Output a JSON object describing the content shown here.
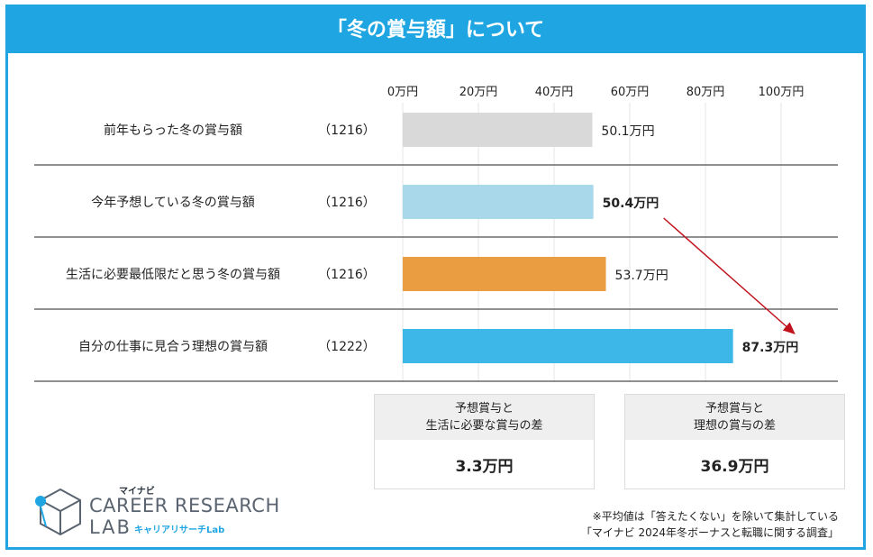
{
  "title": "「冬の賞与額」について",
  "chart_data": {
    "type": "bar",
    "orientation": "horizontal",
    "unit_suffix": "万円",
    "xlim": [
      0,
      100
    ],
    "ticks": [
      0,
      20,
      40,
      60,
      80,
      100
    ],
    "tick_labels": [
      "0万円",
      "20万円",
      "40万円",
      "60万円",
      "80万円",
      "100万円"
    ],
    "categories": [
      "前年もらった冬の賞与額",
      "今年予想している冬の賞与額",
      "生活に必要最低限だと思う冬の賞与額",
      "自分の仕事に見合う理想の賞与額"
    ],
    "counts": [
      "（1216）",
      "（1216）",
      "（1216）",
      "（1222）"
    ],
    "values": [
      50.1,
      50.4,
      53.7,
      87.3
    ],
    "value_labels": [
      "50.1万円",
      "50.4万円",
      "53.7万円",
      "87.3万円"
    ],
    "bold_labels": [
      false,
      true,
      false,
      true
    ],
    "colors": [
      "#d9d9d9",
      "#a8d8ea",
      "#eb9d41",
      "#3db6e8"
    ],
    "arrow_color": "#c0121c"
  },
  "summary_boxes": [
    {
      "line1": "予想賞与と",
      "line2": "生活に必要な賞与の差",
      "value": "3.3万円"
    },
    {
      "line1": "予想賞与と",
      "line2": "理想の賞与の差",
      "value": "36.9万円"
    }
  ],
  "logo": {
    "small": "マイナビ",
    "big": "CAREER RESEARCH",
    "lab": "LAB",
    "kana": "キャリアリサーチLab"
  },
  "notes": [
    "※平均値は「答えたくない」を除いて集計している",
    "「マイナビ 2024年冬ボーナスと転職に関する調査」"
  ]
}
